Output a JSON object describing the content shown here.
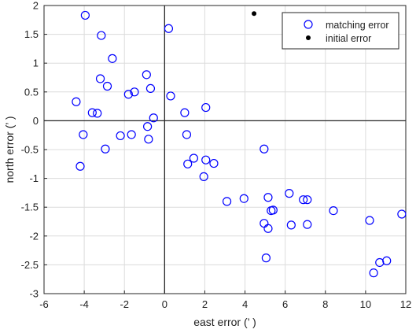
{
  "chart_data": {
    "type": "scatter",
    "title": "",
    "xlabel": "east error (’ )",
    "ylabel": "north error (’ )",
    "xlim": [
      -6,
      12
    ],
    "ylim": [
      -3,
      2
    ],
    "xticks": [
      -6,
      -4,
      -2,
      0,
      2,
      4,
      6,
      8,
      10,
      12
    ],
    "yticks": [
      -3,
      -2.5,
      -2,
      -1.5,
      -1,
      -0.5,
      0,
      0.5,
      1,
      1.5,
      2
    ],
    "xtick_labels": [
      "-6",
      "-4",
      "-2",
      "0",
      "2",
      "4",
      "6",
      "8",
      "10",
      "12"
    ],
    "ytick_labels": [
      "-3",
      "-2.5",
      "-2",
      "-1.5",
      "-1",
      "-0.5",
      "0",
      "0.5",
      "1",
      "1.5",
      "2"
    ],
    "grid": true,
    "legend": "top-right",
    "series": [
      {
        "name": "matching error",
        "marker": "open-circle",
        "color": "#0000ff",
        "points": [
          [
            -3.95,
            1.83
          ],
          [
            -3.15,
            1.48
          ],
          [
            -2.6,
            1.08
          ],
          [
            -3.2,
            0.73
          ],
          [
            -2.85,
            0.6
          ],
          [
            -4.4,
            0.33
          ],
          [
            -3.6,
            0.14
          ],
          [
            -3.35,
            0.13
          ],
          [
            -1.8,
            0.46
          ],
          [
            -1.5,
            0.5
          ],
          [
            -0.9,
            0.8
          ],
          [
            -0.7,
            0.56
          ],
          [
            -0.55,
            0.05
          ],
          [
            -0.85,
            -0.1
          ],
          [
            -4.05,
            -0.24
          ],
          [
            -2.2,
            -0.26
          ],
          [
            -1.65,
            -0.24
          ],
          [
            -0.8,
            -0.32
          ],
          [
            -2.95,
            -0.49
          ],
          [
            -4.2,
            -0.79
          ],
          [
            0.2,
            1.6
          ],
          [
            0.3,
            0.43
          ],
          [
            1.0,
            0.14
          ],
          [
            2.05,
            0.23
          ],
          [
            1.1,
            -0.24
          ],
          [
            1.45,
            -0.65
          ],
          [
            1.15,
            -0.75
          ],
          [
            2.05,
            -0.68
          ],
          [
            2.45,
            -0.74
          ],
          [
            1.95,
            -0.97
          ],
          [
            3.1,
            -1.4
          ],
          [
            3.95,
            -1.35
          ],
          [
            4.95,
            -0.49
          ],
          [
            5.15,
            -1.33
          ],
          [
            5.4,
            -1.55
          ],
          [
            5.3,
            -1.56
          ],
          [
            4.95,
            -1.78
          ],
          [
            5.15,
            -1.87
          ],
          [
            5.05,
            -2.38
          ],
          [
            6.2,
            -1.26
          ],
          [
            6.9,
            -1.37
          ],
          [
            7.1,
            -1.37
          ],
          [
            6.3,
            -1.81
          ],
          [
            7.1,
            -1.8
          ],
          [
            8.4,
            -1.56
          ],
          [
            10.2,
            -1.73
          ],
          [
            11.8,
            -1.62
          ],
          [
            10.4,
            -2.64
          ],
          [
            10.7,
            -2.46
          ],
          [
            11.05,
            -2.43
          ]
        ]
      },
      {
        "name": "initial error",
        "marker": "filled-dot",
        "color": "#000000",
        "points": [
          [
            4.45,
            1.86
          ]
        ]
      }
    ]
  }
}
